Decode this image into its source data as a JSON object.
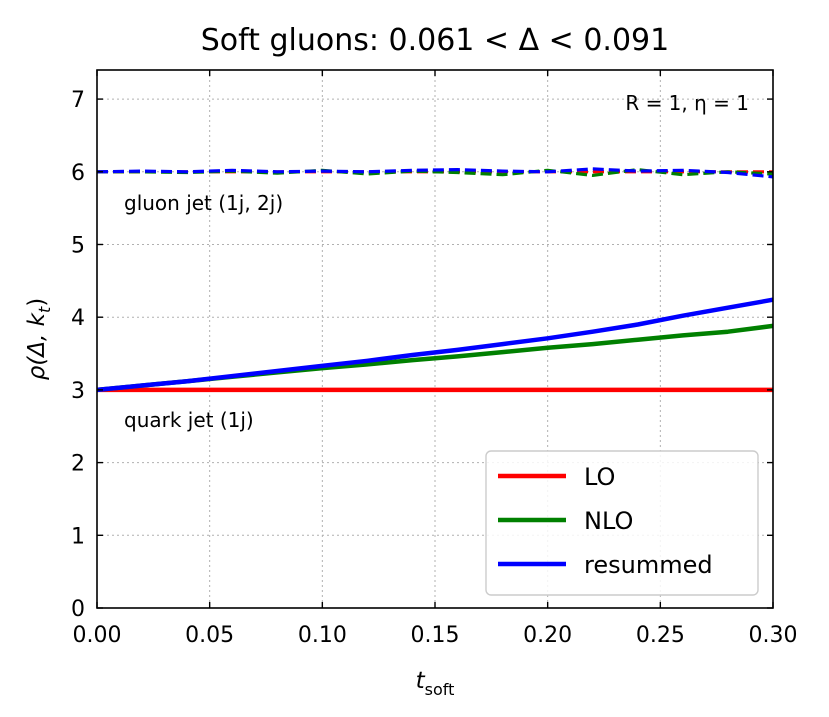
{
  "chart_data": {
    "type": "line",
    "title": "Soft gluons: 0.061 < Δ < 0.091",
    "xlabel": "t",
    "xlabel_sub": "soft",
    "ylabel": "ρ(Δ, k",
    "ylabel_sub": "t",
    "ylabel_close": ")",
    "xlim": [
      0.0,
      0.3
    ],
    "ylim": [
      0,
      7.4
    ],
    "x_ticks": [
      0.0,
      0.05,
      0.1,
      0.15,
      0.2,
      0.25,
      0.3
    ],
    "x_tick_labels": [
      "0.00",
      "0.05",
      "0.10",
      "0.15",
      "0.20",
      "0.25",
      "0.30"
    ],
    "y_ticks": [
      0,
      1,
      2,
      3,
      4,
      5,
      6,
      7
    ],
    "y_tick_labels": [
      "0",
      "1",
      "2",
      "3",
      "4",
      "5",
      "6",
      "7"
    ],
    "grid": true,
    "legend_position": "bottom-right",
    "annotations": {
      "params": "R = 1, η = 1",
      "gluon": "gluon jet (1j, 2j)",
      "quark": "quark jet (1j)"
    },
    "colors": {
      "LO": "#ff0000",
      "NLO": "#008000",
      "resummed": "#0000ff"
    },
    "x": [
      0.0,
      0.02,
      0.04,
      0.06,
      0.08,
      0.1,
      0.12,
      0.14,
      0.16,
      0.18,
      0.2,
      0.22,
      0.24,
      0.26,
      0.28,
      0.3
    ],
    "series": [
      {
        "name": "LO",
        "group": "quark",
        "style": "solid",
        "values": [
          3.0,
          3.0,
          3.0,
          3.0,
          3.0,
          3.0,
          3.0,
          3.0,
          3.0,
          3.0,
          3.0,
          3.0,
          3.0,
          3.0,
          3.0,
          3.0
        ]
      },
      {
        "name": "NLO",
        "group": "quark",
        "style": "solid",
        "values": [
          3.0,
          3.06,
          3.12,
          3.18,
          3.24,
          3.3,
          3.35,
          3.41,
          3.46,
          3.52,
          3.58,
          3.63,
          3.69,
          3.75,
          3.8,
          3.88
        ]
      },
      {
        "name": "resummed",
        "group": "quark",
        "style": "solid",
        "values": [
          3.0,
          3.06,
          3.12,
          3.19,
          3.26,
          3.33,
          3.4,
          3.48,
          3.55,
          3.63,
          3.71,
          3.8,
          3.9,
          4.02,
          4.13,
          4.24
        ]
      },
      {
        "name": "LO",
        "group": "gluon",
        "style": "dashed",
        "values": [
          6.0,
          6.0,
          6.0,
          6.0,
          6.0,
          6.0,
          6.0,
          6.0,
          6.0,
          6.0,
          6.0,
          6.0,
          6.0,
          6.0,
          6.0,
          6.0
        ]
      },
      {
        "name": "NLO",
        "group": "gluon",
        "style": "dashed",
        "values": [
          6.0,
          6.0,
          5.99,
          6.01,
          5.98,
          6.02,
          5.97,
          6.01,
          5.99,
          5.96,
          6.02,
          5.95,
          6.03,
          5.96,
          6.0,
          5.97
        ]
      },
      {
        "name": "resummed",
        "group": "gluon",
        "style": "dashed",
        "values": [
          6.0,
          6.01,
          6.0,
          6.02,
          6.0,
          6.01,
          6.0,
          6.02,
          6.03,
          6.01,
          6.0,
          6.04,
          6.01,
          6.02,
          5.99,
          5.93
        ]
      }
    ],
    "legend": [
      "LO",
      "NLO",
      "resummed"
    ]
  }
}
